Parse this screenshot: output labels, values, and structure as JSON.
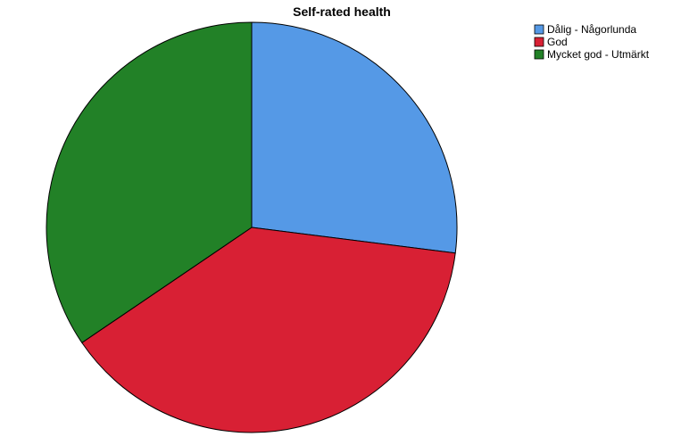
{
  "chart_data": {
    "type": "pie",
    "title": "Self-rated health",
    "start_angle_deg": 0,
    "direction": "clockwise",
    "slices": [
      {
        "label": "Dålig - Någorlunda",
        "value": 27.0,
        "color": "#5599e6"
      },
      {
        "label": "God",
        "value": 38.5,
        "color": "#d82034"
      },
      {
        "label": "Mycket god - Utmärkt",
        "value": 34.5,
        "color": "#228127"
      }
    ],
    "legend_position": "top-right",
    "stroke_color": "#000000"
  }
}
